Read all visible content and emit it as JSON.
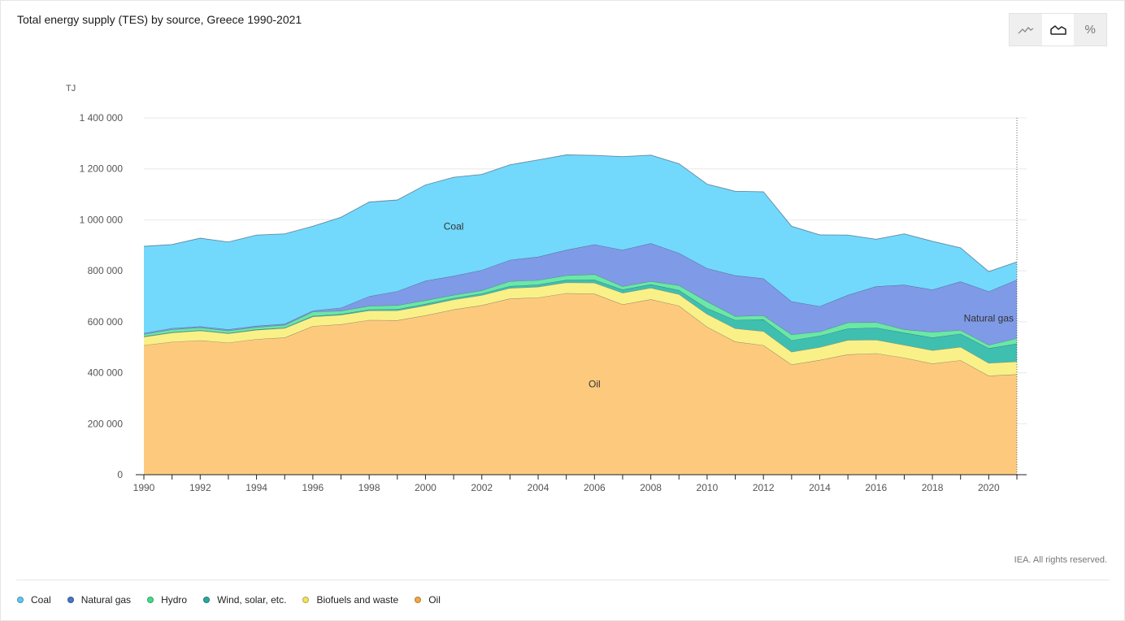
{
  "header": {
    "title": "Total energy supply (TES) by source, Greece 1990-2021"
  },
  "toggle": {
    "options": [
      {
        "name": "line-chart-icon",
        "active": false
      },
      {
        "name": "area-chart-icon",
        "active": true
      },
      {
        "name": "percent-icon",
        "label": "%",
        "active": false
      }
    ]
  },
  "footer": {
    "copyright": "IEA. All rights reserved."
  },
  "chart_data": {
    "type": "area",
    "stacked": true,
    "title": "Total energy supply (TES) by source, Greece 1990-2021",
    "ylabel": "TJ",
    "xlabel": "",
    "ylim": [
      0,
      1400000
    ],
    "yticks": [
      0,
      200000,
      400000,
      600000,
      800000,
      1000000,
      1200000,
      1400000
    ],
    "ytick_labels": [
      "0",
      "200 000",
      "400 000",
      "600 000",
      "800 000",
      "1 000 000",
      "1 200 000",
      "1 400 000"
    ],
    "xticks": [
      1990,
      1992,
      1994,
      1996,
      1998,
      2000,
      2002,
      2004,
      2006,
      2008,
      2010,
      2012,
      2014,
      2016,
      2018,
      2020
    ],
    "x": [
      1990,
      1991,
      1992,
      1993,
      1994,
      1995,
      1996,
      1997,
      1998,
      1999,
      2000,
      2001,
      2002,
      2003,
      2004,
      2005,
      2006,
      2007,
      2008,
      2009,
      2010,
      2011,
      2012,
      2013,
      2014,
      2015,
      2016,
      2017,
      2018,
      2019,
      2020,
      2021
    ],
    "series": [
      {
        "name": "Oil",
        "color": "#fdca7d",
        "values": [
          508000,
          521000,
          527000,
          518000,
          532000,
          538000,
          583000,
          590000,
          607000,
          606000,
          625000,
          648000,
          665000,
          691000,
          695000,
          712000,
          710000,
          668000,
          688000,
          663000,
          580000,
          522000,
          508000,
          432000,
          450000,
          472000,
          476000,
          459000,
          436000,
          449000,
          388000,
          394000
        ]
      },
      {
        "name": "Biofuels and waste",
        "color": "#f9f187",
        "values": [
          33000,
          36000,
          38000,
          36000,
          36000,
          37000,
          37000,
          37000,
          37000,
          38000,
          39000,
          39000,
          39000,
          41000,
          42000,
          42000,
          43000,
          45000,
          45000,
          45000,
          50000,
          52000,
          55000,
          50000,
          50000,
          56000,
          53000,
          50000,
          52000,
          52000,
          50000,
          50000
        ]
      },
      {
        "name": "Wind, solar, etc.",
        "color": "#3fbfb0",
        "values": [
          2000,
          2000,
          2000,
          2000,
          2000,
          2000,
          3000,
          3000,
          4000,
          5000,
          6000,
          6000,
          7000,
          8000,
          9000,
          10000,
          12000,
          13000,
          14000,
          16000,
          23000,
          33000,
          46000,
          45000,
          45000,
          45000,
          48000,
          48000,
          50000,
          52000,
          58000,
          70000
        ]
      },
      {
        "name": "Hydro",
        "color": "#6ae8a5",
        "values": [
          8000,
          11000,
          10000,
          9000,
          9000,
          10000,
          16000,
          13000,
          14000,
          16000,
          14000,
          12000,
          12000,
          19000,
          17000,
          18000,
          21000,
          13000,
          12000,
          19000,
          27000,
          15000,
          16000,
          23000,
          16000,
          24000,
          21000,
          13000,
          22000,
          14000,
          13000,
          21000
        ]
      },
      {
        "name": "Natural gas",
        "color": "#7f9ae6",
        "values": [
          5000,
          5000,
          5000,
          5000,
          5000,
          5000,
          5000,
          12000,
          38000,
          55000,
          77000,
          75000,
          80000,
          84000,
          92000,
          100000,
          117000,
          143000,
          149000,
          127000,
          130000,
          160000,
          145000,
          130000,
          100000,
          108000,
          141000,
          175000,
          166000,
          191000,
          210000,
          230000
        ]
      },
      {
        "name": "Coal",
        "color": "#72d9fc",
        "values": [
          340000,
          328000,
          346000,
          343000,
          356000,
          353000,
          331000,
          355000,
          370000,
          358000,
          376000,
          387000,
          375000,
          373000,
          380000,
          373000,
          350000,
          366000,
          346000,
          350000,
          330000,
          330000,
          340000,
          295000,
          280000,
          235000,
          185000,
          200000,
          190000,
          132000,
          78000,
          70000
        ]
      }
    ],
    "area_labels": [
      {
        "series": "Coal",
        "text": "Coal"
      },
      {
        "series": "Natural gas",
        "text": "Natural gas"
      },
      {
        "series": "Oil",
        "text": "Oil"
      }
    ],
    "legend": [
      {
        "name": "Coal",
        "color": "#5ec9ef"
      },
      {
        "name": "Natural gas",
        "color": "#4a73c9"
      },
      {
        "name": "Hydro",
        "color": "#45d98c"
      },
      {
        "name": "Wind, solar, etc.",
        "color": "#27a99b"
      },
      {
        "name": "Biofuels and waste",
        "color": "#f0e45e"
      },
      {
        "name": "Oil",
        "color": "#f0a845"
      }
    ],
    "legend_position": "bottom"
  }
}
